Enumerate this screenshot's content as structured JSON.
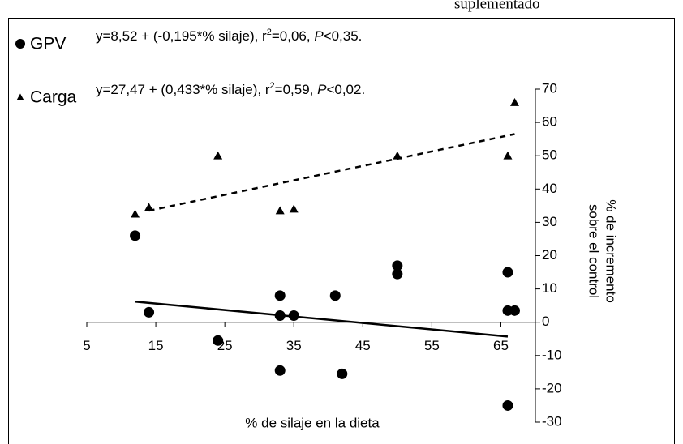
{
  "header_fragment": "suplementado",
  "chart_data": {
    "type": "scatter",
    "x_label": "% de silaje en la dieta",
    "y_label": [
      "% de incremento",
      "sobre el control"
    ],
    "xlim": [
      5,
      70
    ],
    "xticks": [
      5,
      15,
      25,
      35,
      45,
      55,
      65
    ],
    "ylim": [
      -30,
      70
    ],
    "yticks": [
      -30,
      -20,
      -10,
      0,
      10,
      20,
      30,
      40,
      50,
      60,
      70
    ],
    "series": [
      {
        "name": "GPV",
        "color": "#000000",
        "marker": "circle",
        "x": [
          12,
          14,
          24,
          33,
          33,
          33,
          35,
          41,
          42,
          50,
          50,
          66,
          66,
          67,
          66
        ],
        "values": [
          26,
          3,
          -5.5,
          8,
          2,
          -14.5,
          2,
          8,
          -15.5,
          17,
          14.5,
          15,
          3.5,
          3.5,
          -25
        ],
        "equation": [
          "y=8,52 + (-0,195*% silaje), r",
          "2",
          "=0,06, ",
          "P",
          "<0,35."
        ],
        "trendline": {
          "style": "solid",
          "x": [
            12,
            66
          ],
          "values": [
            6.2,
            -4.3
          ]
        }
      },
      {
        "name": "Carga",
        "color": "#000000",
        "marker": "triangle",
        "x": [
          12,
          14,
          24,
          33,
          35,
          50,
          66,
          67
        ],
        "values": [
          32.5,
          34.5,
          50,
          33.5,
          34,
          50,
          50,
          66
        ],
        "equation": [
          "y=27,47 + (0,433*% silaje), r",
          "2",
          "=0,59, ",
          "P",
          "<0,02."
        ],
        "trendline": {
          "style": "dashed",
          "x": [
            14,
            67
          ],
          "values": [
            33.5,
            56.5
          ]
        }
      }
    ]
  }
}
